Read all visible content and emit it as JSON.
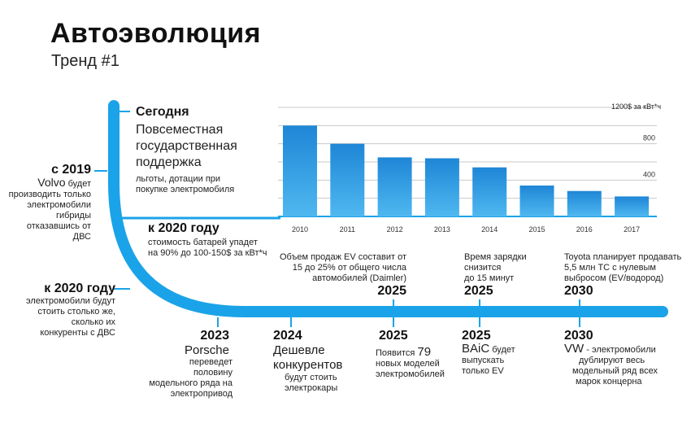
{
  "header": {
    "title": "Автоэволюция",
    "subtitle": "Тренд #1"
  },
  "today": {
    "heading": "Сегодня",
    "line1": "Повсеместная",
    "line2": "государственная",
    "line3": "поддержка",
    "small1": "льготы, дотации при",
    "small2": "покупке электромобиля"
  },
  "left_2019": {
    "year": "с 2019",
    "brand": "Volvo",
    "l1": "будет",
    "l2": "производить только",
    "l3": "электромобили",
    "l4": "гибриды",
    "l5": "отказавшись от ДВС"
  },
  "battery_2020": {
    "heading": "к 2020 году",
    "l1": "стоимость батарей упадет",
    "l2": "на 90% до 100-150$ за кВт*ч"
  },
  "left_2020": {
    "heading": "к 2020 году",
    "l1": "электромобили будут",
    "l2": "стоить столько же,",
    "l3": "сколько их",
    "l4": "конкуренты с ДВС"
  },
  "top_events": [
    {
      "l1": "Объем продаж EV составит от",
      "l2": "15 до 25% от общего числа",
      "l3": "автомобилей (Daimler)",
      "year": "2025"
    },
    {
      "l1": "Время зарядки",
      "l2": "снизится",
      "l3": "до 15 минут",
      "year": "2025"
    },
    {
      "l1": "Toyota планирует продавать",
      "l2": "5,5 млн ТС с нулевым",
      "l3": "выбросом (EV/водород)",
      "year": "2030"
    }
  ],
  "bottom_events": {
    "porsche": {
      "year": "2023",
      "brand": "Porsche",
      "l1": "переведет",
      "l2": "половину",
      "l3": "модельного ряда на",
      "l4": "электропривод"
    },
    "cheaper": {
      "year": "2024",
      "big1": "Дешевле",
      "big2": "конкурентов",
      "l1": "будут стоить",
      "l2": "электрокары"
    },
    "models": {
      "year": "2025",
      "pre": "Появится",
      "num": "79",
      "l2": "новых моделей",
      "l3": "электромобилей"
    },
    "baic": {
      "year": "2025",
      "brand": "BAiC",
      "post": "будет",
      "l2": "выпускать",
      "l3": "только EV"
    },
    "vw": {
      "year": "2030",
      "brand": "VW",
      "post": "- электромобили",
      "l2": "дублируют весь",
      "l3": "модельный ряд всех",
      "l4": "марок  концерна"
    }
  },
  "colors": {
    "accent": "#1aa3e8",
    "bar_top": "#1e86d6",
    "bar_bottom": "#4fb8f0",
    "grid": "#c9c9c9"
  },
  "chart_data": {
    "type": "bar",
    "categories": [
      "2010",
      "2011",
      "2012",
      "2013",
      "2014",
      "2015",
      "2016",
      "2017"
    ],
    "values": [
      1000,
      800,
      650,
      640,
      540,
      340,
      280,
      220
    ],
    "unit_label": "1200$  за кВт*ч",
    "ytick_labels": [
      "400",
      "800"
    ],
    "ylim": [
      0,
      1200
    ],
    "grid": true,
    "xlabel": "",
    "ylabel": ""
  }
}
